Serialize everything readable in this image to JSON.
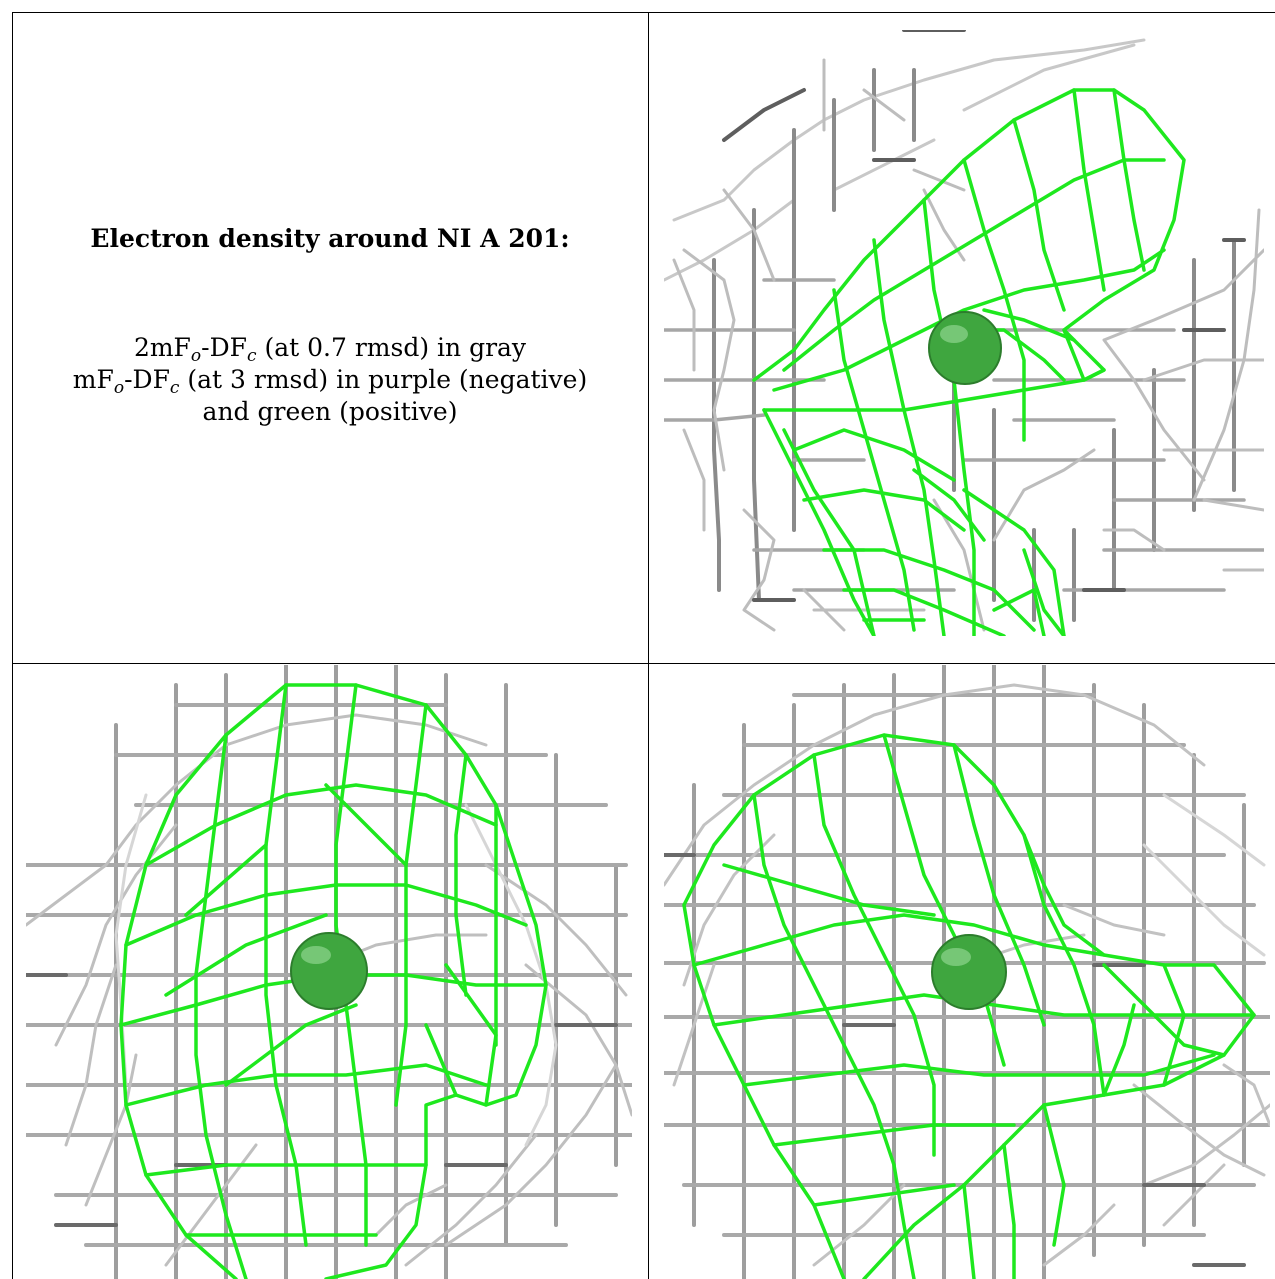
{
  "caption": {
    "title": "Electron density around NI A 201:",
    "line1": {
      "a": "2mF",
      "o": "o",
      "b": "-DF",
      "c": "c",
      "rest": " (at 0.7 rmsd) in gray"
    },
    "line2": {
      "a": "mF",
      "o": "o",
      "b": "-DF",
      "c": "c",
      "rest": " (at 3 rmsd) in purple (negative)"
    },
    "line3": "and green (positive)"
  },
  "colors": {
    "positive": "#1ee81e",
    "negative": "#b400b4",
    "mesh_gray": "#9a9a9a",
    "atom": "#3fa63f"
  },
  "icons": {
    "atom": "nickel-atom-sphere",
    "mesh": "density-mesh"
  }
}
